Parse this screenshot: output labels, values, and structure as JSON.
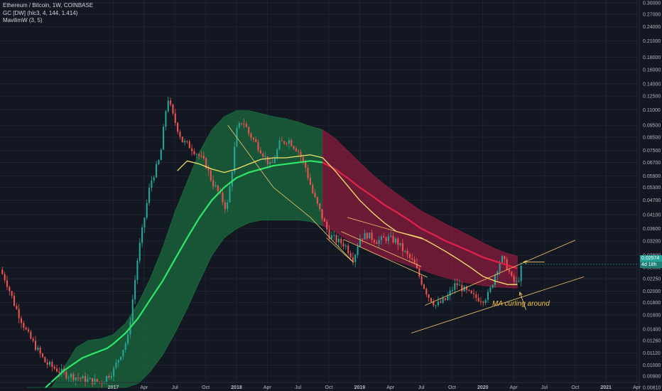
{
  "legend": {
    "symbol": "Ethereum / Bitcoin, 1W, COINBASE",
    "indicator1": "GC [DW] (hlc3, 4, 144, 1.414)",
    "indicator2": "MavilimW (3, 5)"
  },
  "annotation": "MA curling around",
  "last_price": {
    "value": "0.02574",
    "countdown": "4d 18h"
  },
  "colors": {
    "background": "#131722",
    "grid": "#1f2433",
    "candle_up": "#26a69a",
    "candle_down": "#ef5350",
    "green_band": "#1b6b3d",
    "red_band": "#8a1c3e",
    "green_ma": "#2ee86a",
    "red_ma": "#e2224a",
    "yellow_ma": "#f4e26b",
    "trendline": "#f3c96b"
  },
  "chart_data": {
    "type": "candlestick",
    "title": "Ethereum / Bitcoin, 1W, COINBASE",
    "y_scale": "log",
    "ylim": [
      0.0081,
      0.3
    ],
    "y_ticks": [
      "0.30000",
      "0.27000",
      "0.24000",
      "0.21000",
      "0.18000",
      "0.16000",
      "0.14000",
      "0.12500",
      "0.11000",
      "0.09500",
      "0.08500",
      "0.07500",
      "0.06700",
      "0.05900",
      "0.05300",
      "0.04700",
      "0.04100",
      "0.03600",
      "0.03200",
      "0.02800",
      "0.02500",
      "0.02250",
      "0.02000",
      "0.01800",
      "0.01600",
      "0.01400",
      "0.01260",
      "0.01120",
      "0.01000",
      "0.00900",
      "0.00810"
    ],
    "x_ticks": [
      "2017",
      "Apr",
      "Jul",
      "Oct",
      "2018",
      "Apr",
      "Jul",
      "Oct",
      "2019",
      "Apr",
      "Jul",
      "Oct",
      "2020",
      "Apr",
      "Jul",
      "Oct",
      "2021",
      "Apr"
    ],
    "x_tick_dates": [
      2017.0,
      2017.25,
      2017.5,
      2017.75,
      2018.0,
      2018.25,
      2018.5,
      2018.75,
      2019.0,
      2019.25,
      2019.5,
      2019.75,
      2020.0,
      2020.25,
      2020.5,
      2020.75,
      2021.0,
      2021.25
    ],
    "xlim": [
      2016.08,
      2021.27
    ],
    "price_keypoints": [
      [
        2016.08,
        0.0245
      ],
      [
        2016.13,
        0.022
      ],
      [
        2016.2,
        0.0175
      ],
      [
        2016.3,
        0.0135
      ],
      [
        2016.45,
        0.0102
      ],
      [
        2016.6,
        0.0092
      ],
      [
        2016.78,
        0.0087
      ],
      [
        2016.9,
        0.0085
      ],
      [
        2017.0,
        0.0095
      ],
      [
        2017.12,
        0.013
      ],
      [
        2017.2,
        0.028
      ],
      [
        2017.3,
        0.055
      ],
      [
        2017.38,
        0.07
      ],
      [
        2017.44,
        0.125
      ],
      [
        2017.48,
        0.105
      ],
      [
        2017.56,
        0.082
      ],
      [
        2017.62,
        0.078
      ],
      [
        2017.68,
        0.073
      ],
      [
        2017.75,
        0.066
      ],
      [
        2017.8,
        0.056
      ],
      [
        2017.86,
        0.05
      ],
      [
        2017.92,
        0.043
      ],
      [
        2017.96,
        0.06
      ],
      [
        2018.0,
        0.09
      ],
      [
        2018.05,
        0.1
      ],
      [
        2018.1,
        0.088
      ],
      [
        2018.2,
        0.075
      ],
      [
        2018.28,
        0.064
      ],
      [
        2018.35,
        0.08
      ],
      [
        2018.42,
        0.083
      ],
      [
        2018.5,
        0.075
      ],
      [
        2018.56,
        0.064
      ],
      [
        2018.62,
        0.05
      ],
      [
        2018.68,
        0.042
      ],
      [
        2018.75,
        0.034
      ],
      [
        2018.82,
        0.032
      ],
      [
        2018.88,
        0.031
      ],
      [
        2018.95,
        0.027
      ],
      [
        2019.0,
        0.033
      ],
      [
        2019.06,
        0.034
      ],
      [
        2019.14,
        0.032
      ],
      [
        2019.22,
        0.033
      ],
      [
        2019.3,
        0.032
      ],
      [
        2019.36,
        0.029
      ],
      [
        2019.44,
        0.026
      ],
      [
        2019.5,
        0.022
      ],
      [
        2019.56,
        0.019
      ],
      [
        2019.62,
        0.0175
      ],
      [
        2019.7,
        0.0185
      ],
      [
        2019.78,
        0.0215
      ],
      [
        2019.86,
        0.02
      ],
      [
        2019.92,
        0.019
      ],
      [
        2020.0,
        0.0185
      ],
      [
        2020.05,
        0.0195
      ],
      [
        2020.1,
        0.0235
      ],
      [
        2020.15,
        0.0275
      ],
      [
        2020.2,
        0.025
      ],
      [
        2020.24,
        0.022
      ],
      [
        2020.28,
        0.0215
      ],
      [
        2020.32,
        0.0257
      ]
    ],
    "series": [
      {
        "name": "",
        "type": "band",
        "points": [
          [
            2016.3,
            0.0081,
            0.0081
          ],
          [
            2016.5,
            0.0081,
            0.0081
          ],
          [
            2016.7,
            0.0081,
            0.0118
          ],
          [
            2016.8,
            0.0081,
            0.0126
          ],
          [
            2016.9,
            0.0081,
            0.0128
          ],
          [
            2017.0,
            0.0081,
            0.0133
          ],
          [
            2017.1,
            0.0081,
            0.0148
          ],
          [
            2017.2,
            0.0084,
            0.0178
          ],
          [
            2017.3,
            0.0094,
            0.0225
          ],
          [
            2017.4,
            0.011,
            0.03
          ],
          [
            2017.5,
            0.0135,
            0.042
          ],
          [
            2017.6,
            0.017,
            0.056
          ],
          [
            2017.7,
            0.022,
            0.074
          ],
          [
            2017.8,
            0.028,
            0.091
          ],
          [
            2017.9,
            0.033,
            0.103
          ],
          [
            2018.0,
            0.036,
            0.109
          ],
          [
            2018.1,
            0.038,
            0.109
          ],
          [
            2018.2,
            0.039,
            0.106
          ],
          [
            2018.3,
            0.039,
            0.103
          ],
          [
            2018.4,
            0.039,
            0.101
          ],
          [
            2018.5,
            0.039,
            0.098
          ],
          [
            2018.6,
            0.0385,
            0.094
          ],
          [
            2018.7,
            0.037,
            0.091
          ]
        ]
      },
      {
        "name": "",
        "type": "band",
        "points": [
          [
            2018.7,
            0.037,
            0.091
          ],
          [
            2018.8,
            0.035,
            0.084
          ],
          [
            2018.9,
            0.0325,
            0.075
          ],
          [
            2019.0,
            0.0305,
            0.067
          ],
          [
            2019.1,
            0.0287,
            0.06
          ],
          [
            2019.2,
            0.0275,
            0.0545
          ],
          [
            2019.3,
            0.0265,
            0.05
          ],
          [
            2019.4,
            0.0255,
            0.046
          ],
          [
            2019.5,
            0.0245,
            0.0425
          ],
          [
            2019.6,
            0.0235,
            0.04
          ],
          [
            2019.7,
            0.0227,
            0.0375
          ],
          [
            2019.8,
            0.022,
            0.0355
          ],
          [
            2019.9,
            0.0215,
            0.0335
          ],
          [
            2020.0,
            0.0211,
            0.0315
          ],
          [
            2020.1,
            0.0208,
            0.0298
          ],
          [
            2020.2,
            0.0207,
            0.0285
          ],
          [
            2020.28,
            0.0206,
            0.0278
          ]
        ]
      },
      {
        "name": "",
        "type": "line",
        "points": [
          [
            2016.45,
            0.0081
          ],
          [
            2016.6,
            0.0095
          ],
          [
            2016.75,
            0.0107
          ],
          [
            2016.85,
            0.0112
          ],
          [
            2016.95,
            0.0117
          ],
          [
            2017.0,
            0.0122
          ],
          [
            2017.1,
            0.0135
          ],
          [
            2017.2,
            0.0155
          ],
          [
            2017.3,
            0.0185
          ],
          [
            2017.4,
            0.022
          ],
          [
            2017.5,
            0.027
          ],
          [
            2017.6,
            0.033
          ],
          [
            2017.7,
            0.04
          ],
          [
            2017.8,
            0.047
          ],
          [
            2017.9,
            0.053
          ],
          [
            2018.0,
            0.058
          ],
          [
            2018.1,
            0.061
          ],
          [
            2018.2,
            0.063
          ],
          [
            2018.3,
            0.065
          ],
          [
            2018.4,
            0.066
          ],
          [
            2018.5,
            0.067
          ],
          [
            2018.6,
            0.068
          ],
          [
            2018.7,
            0.067
          ]
        ]
      },
      {
        "name": "",
        "type": "line",
        "points": [
          [
            2018.7,
            0.067
          ],
          [
            2018.8,
            0.063
          ],
          [
            2018.9,
            0.058
          ],
          [
            2019.0,
            0.053
          ],
          [
            2019.1,
            0.049
          ],
          [
            2019.2,
            0.045
          ],
          [
            2019.3,
            0.042
          ],
          [
            2019.4,
            0.039
          ],
          [
            2019.5,
            0.036
          ],
          [
            2019.6,
            0.034
          ],
          [
            2019.7,
            0.032
          ],
          [
            2019.8,
            0.0305
          ],
          [
            2019.9,
            0.029
          ],
          [
            2020.0,
            0.0275
          ],
          [
            2020.1,
            0.0265
          ],
          [
            2020.2,
            0.0255
          ],
          [
            2020.28,
            0.0248
          ]
        ]
      },
      {
        "name": "",
        "type": "line",
        "points": [
          [
            2017.52,
            0.062
          ],
          [
            2017.6,
            0.068
          ],
          [
            2017.7,
            0.066
          ],
          [
            2017.8,
            0.063
          ],
          [
            2017.9,
            0.061
          ],
          [
            2018.0,
            0.063
          ],
          [
            2018.1,
            0.066
          ],
          [
            2018.2,
            0.069
          ],
          [
            2018.3,
            0.07
          ],
          [
            2018.4,
            0.07
          ],
          [
            2018.5,
            0.071
          ],
          [
            2018.6,
            0.072
          ],
          [
            2018.7,
            0.07
          ],
          [
            2018.8,
            0.062
          ],
          [
            2018.9,
            0.054
          ],
          [
            2019.0,
            0.047
          ],
          [
            2019.1,
            0.042
          ],
          [
            2019.2,
            0.038
          ],
          [
            2019.3,
            0.035
          ],
          [
            2019.4,
            0.034
          ],
          [
            2019.5,
            0.033
          ],
          [
            2019.6,
            0.031
          ],
          [
            2019.7,
            0.029
          ],
          [
            2019.8,
            0.027
          ],
          [
            2019.9,
            0.025
          ],
          [
            2020.0,
            0.023
          ],
          [
            2020.1,
            0.022
          ],
          [
            2020.2,
            0.0213
          ],
          [
            2020.28,
            0.0213
          ]
        ]
      }
    ],
    "trendlines": [
      [
        [
          2017.93,
          0.095
        ],
        [
          2018.3,
          0.053
        ],
        [
          2018.6,
          0.04
        ],
        [
          2018.95,
          0.0262
        ]
      ],
      [
        [
          2018.73,
          0.033
        ],
        [
          2018.95,
          0.0262
        ]
      ],
      [
        [
          2018.9,
          0.04
        ],
        [
          2019.55,
          0.0322
        ]
      ],
      [
        [
          2018.85,
          0.035
        ],
        [
          2019.5,
          0.0252
        ]
      ],
      [
        [
          2018.87,
          0.0325
        ],
        [
          2019.55,
          0.0228
        ]
      ],
      [
        [
          2019.53,
          0.0175
        ],
        [
          2020.75,
          0.0323
        ]
      ],
      [
        [
          2019.42,
          0.0135
        ],
        [
          2020.82,
          0.0229
        ]
      ]
    ],
    "arrows": [
      {
        "from": [
          2020.5,
          0.0263
        ],
        "to": [
          2020.33,
          0.0263
        ]
      },
      {
        "from": [
          2020.35,
          0.0168
        ],
        "to": [
          2020.3,
          0.0198
        ]
      }
    ]
  }
}
